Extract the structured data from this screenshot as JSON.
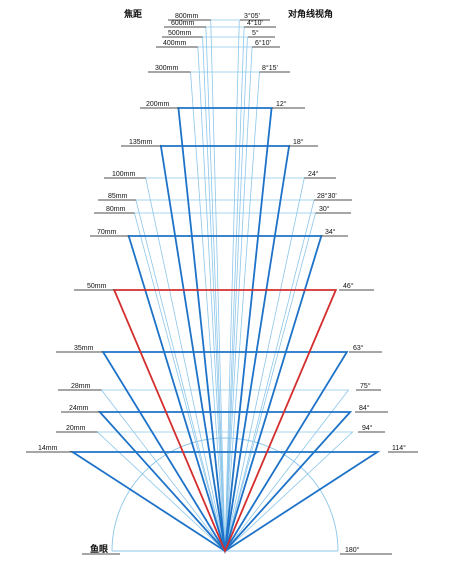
{
  "header": {
    "focal_title": "焦距",
    "angle_title": "对角线视角",
    "fisheye_label": "鱼眼"
  },
  "colors": {
    "bold_blue": "#1e73c8",
    "thin_blue": "#8dc6ea",
    "highlight_red": "#d42e2e",
    "ink": "#111111"
  },
  "lenses": [
    {
      "focal": "800mm",
      "angle": "3°05'",
      "style": "thin"
    },
    {
      "focal": "600mm",
      "angle": "4°10'",
      "style": "thin"
    },
    {
      "focal": "500mm",
      "angle": "5°",
      "style": "thin"
    },
    {
      "focal": "400mm",
      "angle": "6°10'",
      "style": "thin"
    },
    {
      "focal": "300mm",
      "angle": "8°15'",
      "style": "thin"
    },
    {
      "focal": "200mm",
      "angle": "12°",
      "style": "bold"
    },
    {
      "focal": "135mm",
      "angle": "18°",
      "style": "bold"
    },
    {
      "focal": "100mm",
      "angle": "24°",
      "style": "thin"
    },
    {
      "focal": "85mm",
      "angle": "28°30'",
      "style": "thin"
    },
    {
      "focal": "80mm",
      "angle": "30°",
      "style": "thin"
    },
    {
      "focal": "70mm",
      "angle": "34°",
      "style": "bold"
    },
    {
      "focal": "50mm",
      "angle": "46°",
      "style": "red"
    },
    {
      "focal": "35mm",
      "angle": "63°",
      "style": "bold"
    },
    {
      "focal": "28mm",
      "angle": "75°",
      "style": "thin"
    },
    {
      "focal": "24mm",
      "angle": "84°",
      "style": "bold"
    },
    {
      "focal": "20mm",
      "angle": "94°",
      "style": "thin"
    },
    {
      "focal": "14mm",
      "angle": "114°",
      "style": "bold"
    }
  ],
  "fisheye": {
    "angle": "180°"
  }
}
